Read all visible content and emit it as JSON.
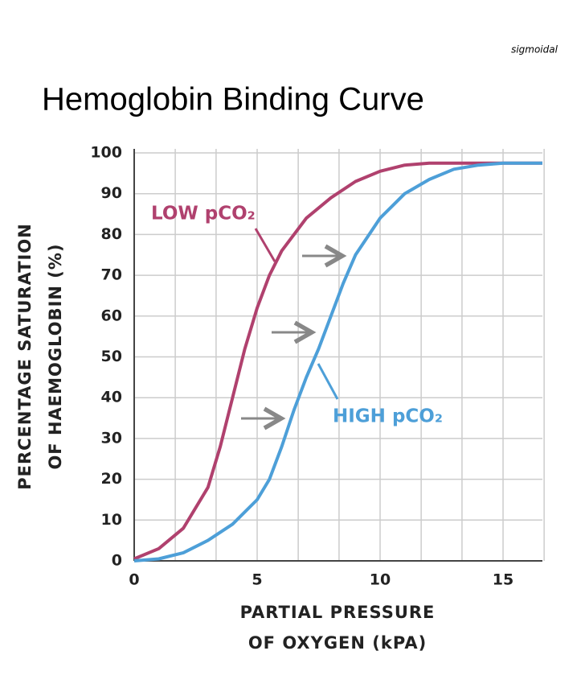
{
  "chart_data": {
    "type": "line",
    "title": "Hemoglobin Binding Curve",
    "watermark": "sigmoidal",
    "xlabel": [
      "PARTIAL PRESSURE",
      "OF OXYGEN (kPA)"
    ],
    "ylabel": [
      "PERCENTAGE SATURATION",
      "OF HAEMOGLOBIN (%)"
    ],
    "xlim": [
      0,
      16.6
    ],
    "ylim": [
      0,
      100
    ],
    "xticks": [
      0,
      5,
      10,
      15
    ],
    "yticks": [
      0,
      10,
      20,
      30,
      40,
      50,
      60,
      70,
      80,
      90,
      100
    ],
    "xgrid": [
      0,
      1.67,
      3.33,
      5,
      6.67,
      8.33,
      10,
      11.67,
      13.33,
      15,
      16.67
    ],
    "grid": true,
    "series": [
      {
        "name": "LOW pCO₂",
        "color": "#b0416e",
        "x": [
          0,
          1,
          2,
          3,
          3.5,
          4,
          4.5,
          5,
          5.5,
          6,
          7,
          8,
          9,
          10,
          11,
          12,
          14,
          16.6
        ],
        "values": [
          0.5,
          3,
          8,
          18,
          28,
          40,
          52,
          62,
          70,
          76,
          84,
          89,
          93,
          95.5,
          97,
          97.5,
          97.5,
          97.5
        ]
      },
      {
        "name": "HIGH pCO₂",
        "color": "#4d9fd8",
        "x": [
          0,
          1,
          2,
          3,
          4,
          5,
          5.5,
          6,
          6.5,
          7,
          7.5,
          8,
          8.5,
          9,
          10,
          11,
          12,
          13,
          14,
          15,
          16.6
        ],
        "values": [
          0,
          0.5,
          2,
          5,
          9,
          15,
          20,
          28,
          37,
          45,
          52,
          60,
          68,
          75,
          84,
          90,
          93.5,
          96,
          97,
          97.5,
          97.5
        ]
      }
    ]
  }
}
